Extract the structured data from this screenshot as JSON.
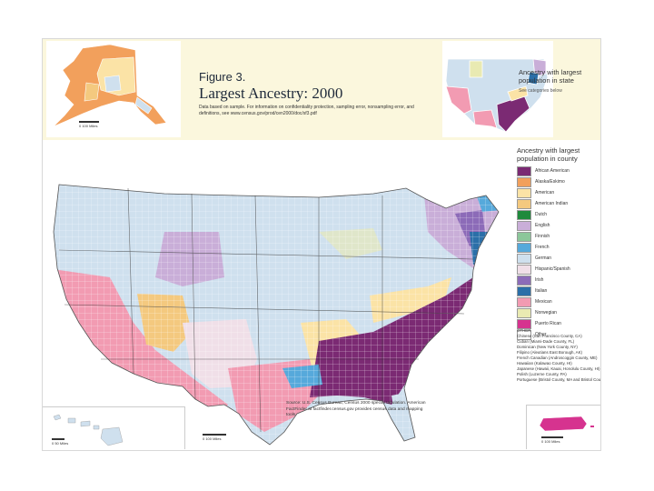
{
  "figure": {
    "number": "Figure 3.",
    "title": "Largest Ancestry: 2000",
    "note": "Data based on sample. For information on confidentiality protection, sampling error, nonsampling error, and definitions, see www.census.gov/prod/cen2000/doc/sf3.pdf"
  },
  "inset_state": {
    "title": "Ancestry with largest population in state",
    "subtitle": "See categories below"
  },
  "scales": {
    "alaska": "0    100 Miles",
    "hawaii": "0   50 Miles",
    "lower48": "0   100 Miles",
    "puerto_rico": "0  100 Miles"
  },
  "legend": {
    "title": "Ancestry with largest population in county",
    "items": [
      {
        "label": "African American",
        "color": "#7b2a73"
      },
      {
        "label": "Alaska/Eskimo",
        "color": "#f2a05c"
      },
      {
        "label": "American",
        "color": "#fbe3a6"
      },
      {
        "label": "American Indian",
        "color": "#f4c97f"
      },
      {
        "label": "Dutch",
        "color": "#1f8a3c"
      },
      {
        "label": "English",
        "color": "#c9aed8"
      },
      {
        "label": "Finnish",
        "color": "#8cc79a"
      },
      {
        "label": "French",
        "color": "#56a9db"
      },
      {
        "label": "German",
        "color": "#cfe0ee"
      },
      {
        "label": "Hispanic/Spanish",
        "color": "#f0dfe8"
      },
      {
        "label": "Irish",
        "color": "#8c6bb8"
      },
      {
        "label": "Italian",
        "color": "#2b6fa8"
      },
      {
        "label": "Mexican",
        "color": "#f29bb2"
      },
      {
        "label": "Norwegian",
        "color": "#e9eab2"
      },
      {
        "label": "Puerto Rican",
        "color": "#d6338f"
      },
      {
        "label": "Other",
        "color": "#ffffff"
      }
    ]
  },
  "other": {
    "title": "OTHER",
    "items": [
      "Chinese (San Francisco County, CA)",
      "Cuban (Miami-Dade County, FL)",
      "Dominican (New York County, NY)",
      "Filipino (Aleutians East Borough, AK)",
      "French Canadian (Androscoggin County, ME)",
      "Hawaiian (Kalawao County, HI)",
      "Japanese (Hawaii, Kauai, Honolulu County, HI)",
      "Polish (Luzerne County, PA)",
      "Portuguese (Bristol County, MA and Bristol County, RI)"
    ]
  },
  "source": "Source: U.S. Census Bureau, Census 2000 special tabulation. American FactFinder at factfinder.census.gov provides census data and mapping tools."
}
